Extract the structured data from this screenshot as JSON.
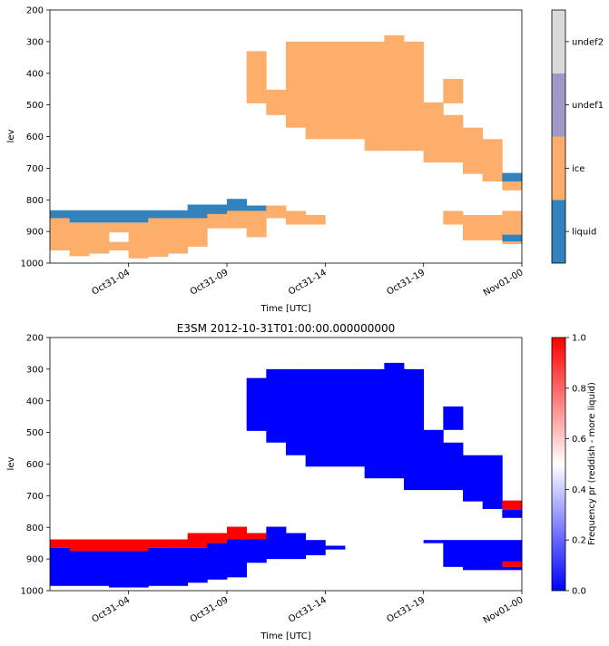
{
  "chart_data": [
    {
      "type": "heatmap",
      "title": "",
      "xlabel": "Time [UTC]",
      "ylabel": "lev",
      "xlim_hours": [
        0,
        24
      ],
      "ylim": [
        1000,
        200
      ],
      "x_tick_labels": [
        "Oct31-04",
        "Oct31-09",
        "Oct31-14",
        "Oct31-19",
        "Nov01-00"
      ],
      "x_tick_hours": [
        4,
        9,
        14,
        19,
        24
      ],
      "y_ticks": [
        200,
        300,
        400,
        500,
        600,
        700,
        800,
        900,
        1000
      ],
      "grid": false,
      "colorbar": {
        "kind": "categorical",
        "categories": [
          "liquid",
          "ice",
          "undef1",
          "undef2"
        ],
        "colors": [
          "#3182bd",
          "#fdae6b",
          "#9e9ac8",
          "#d9d9d9"
        ]
      },
      "cells": [
        {
          "x0": 0,
          "x1": 1,
          "ranges": [
            [
              833,
              858,
              0
            ],
            [
              858,
              960,
              1
            ]
          ]
        },
        {
          "x0": 1,
          "x1": 2,
          "ranges": [
            [
              833,
              872,
              0
            ],
            [
              872,
              978,
              1
            ]
          ]
        },
        {
          "x0": 2,
          "x1": 3,
          "ranges": [
            [
              833,
              872,
              0
            ],
            [
              872,
              970,
              1
            ]
          ]
        },
        {
          "x0": 3,
          "x1": 4,
          "ranges": [
            [
              833,
              872,
              0
            ],
            [
              872,
              903,
              1
            ],
            [
              933,
              960,
              1
            ]
          ]
        },
        {
          "x0": 4,
          "x1": 5,
          "ranges": [
            [
              833,
              872,
              0
            ],
            [
              872,
              985,
              1
            ]
          ]
        },
        {
          "x0": 5,
          "x1": 6,
          "ranges": [
            [
              833,
              858,
              0
            ],
            [
              858,
              980,
              1
            ]
          ]
        },
        {
          "x0": 6,
          "x1": 7,
          "ranges": [
            [
              833,
              858,
              0
            ],
            [
              858,
              970,
              1
            ]
          ]
        },
        {
          "x0": 7,
          "x1": 8,
          "ranges": [
            [
              815,
              858,
              0
            ],
            [
              858,
              948,
              1
            ]
          ]
        },
        {
          "x0": 8,
          "x1": 9,
          "ranges": [
            [
              815,
              845,
              0
            ],
            [
              845,
              890,
              1
            ]
          ]
        },
        {
          "x0": 9,
          "x1": 10,
          "ranges": [
            [
              797,
              835,
              0
            ],
            [
              835,
              890,
              1
            ]
          ]
        },
        {
          "x0": 10,
          "x1": 11,
          "ranges": [
            [
              330,
              495,
              1
            ],
            [
              818,
              835,
              0
            ],
            [
              835,
              918,
              1
            ]
          ]
        },
        {
          "x0": 11,
          "x1": 12,
          "ranges": [
            [
              452,
              532,
              1
            ],
            [
              818,
              858,
              1
            ]
          ]
        },
        {
          "x0": 12,
          "x1": 13,
          "ranges": [
            [
              300,
              572,
              1
            ],
            [
              835,
              878,
              1
            ]
          ]
        },
        {
          "x0": 13,
          "x1": 14,
          "ranges": [
            [
              300,
              608,
              1
            ],
            [
              848,
              878,
              1
            ]
          ]
        },
        {
          "x0": 14,
          "x1": 15,
          "ranges": [
            [
              300,
              608,
              1
            ]
          ]
        },
        {
          "x0": 15,
          "x1": 16,
          "ranges": [
            [
              300,
              608,
              1
            ]
          ]
        },
        {
          "x0": 16,
          "x1": 17,
          "ranges": [
            [
              300,
              645,
              1
            ]
          ]
        },
        {
          "x0": 17,
          "x1": 18,
          "ranges": [
            [
              280,
              645,
              1
            ]
          ]
        },
        {
          "x0": 18,
          "x1": 19,
          "ranges": [
            [
              300,
              645,
              1
            ]
          ]
        },
        {
          "x0": 19,
          "x1": 20,
          "ranges": [
            [
              492,
              682,
              1
            ]
          ]
        },
        {
          "x0": 20,
          "x1": 21,
          "ranges": [
            [
              418,
              495,
              1
            ],
            [
              532,
              682,
              1
            ],
            [
              835,
              878,
              1
            ]
          ]
        },
        {
          "x0": 21,
          "x1": 22,
          "ranges": [
            [
              572,
              718,
              1
            ],
            [
              848,
              928,
              1
            ]
          ]
        },
        {
          "x0": 22,
          "x1": 23,
          "ranges": [
            [
              608,
              742,
              1
            ],
            [
              848,
              928,
              1
            ]
          ]
        },
        {
          "x0": 23,
          "x1": 24,
          "ranges": [
            [
              715,
              742,
              0
            ],
            [
              742,
              770,
              1
            ],
            [
              835,
              910,
              1
            ],
            [
              910,
              932,
              0
            ],
            [
              932,
              940,
              1
            ]
          ]
        }
      ]
    },
    {
      "type": "heatmap",
      "title": "E3SM 2012-10-31T01:00:00.000000000",
      "xlabel": "Time [UTC]",
      "ylabel": "lev",
      "xlim_hours": [
        0,
        24
      ],
      "ylim": [
        1000,
        200
      ],
      "x_tick_labels": [
        "Oct31-04",
        "Oct31-09",
        "Oct31-14",
        "Oct31-19",
        "Nov01-00"
      ],
      "x_tick_hours": [
        4,
        9,
        14,
        19,
        24
      ],
      "y_ticks": [
        200,
        300,
        400,
        500,
        600,
        700,
        800,
        900,
        1000
      ],
      "grid": false,
      "colorbar": {
        "kind": "continuous",
        "label": "Frequency pr (reddish - more liquid)",
        "range": [
          0,
          1
        ],
        "ticks": [
          "0.0",
          "0.2",
          "0.4",
          "0.6",
          "0.8",
          "1.0"
        ],
        "colors": [
          "#0000ff",
          "#ffffff",
          "#ff0000"
        ]
      },
      "cells": [
        {
          "x0": 0,
          "x1": 1,
          "ranges": [
            [
              838,
              865,
              1
            ],
            [
              865,
              985,
              0
            ]
          ]
        },
        {
          "x0": 1,
          "x1": 2,
          "ranges": [
            [
              838,
              875,
              1
            ],
            [
              875,
              985,
              0
            ]
          ]
        },
        {
          "x0": 2,
          "x1": 3,
          "ranges": [
            [
              838,
              875,
              1
            ],
            [
              875,
              985,
              0
            ]
          ]
        },
        {
          "x0": 3,
          "x1": 4,
          "ranges": [
            [
              838,
              875,
              1
            ],
            [
              875,
              990,
              0
            ]
          ]
        },
        {
          "x0": 4,
          "x1": 5,
          "ranges": [
            [
              838,
              875,
              1
            ],
            [
              875,
              990,
              0
            ]
          ]
        },
        {
          "x0": 5,
          "x1": 6,
          "ranges": [
            [
              838,
              865,
              1
            ],
            [
              865,
              985,
              0
            ]
          ]
        },
        {
          "x0": 6,
          "x1": 7,
          "ranges": [
            [
              838,
              865,
              1
            ],
            [
              865,
              985,
              0
            ]
          ]
        },
        {
          "x0": 7,
          "x1": 8,
          "ranges": [
            [
              818,
              865,
              1
            ],
            [
              865,
              975,
              0
            ]
          ]
        },
        {
          "x0": 8,
          "x1": 9,
          "ranges": [
            [
              818,
              850,
              1
            ],
            [
              850,
              965,
              0
            ]
          ]
        },
        {
          "x0": 9,
          "x1": 10,
          "ranges": [
            [
              798,
              838,
              1
            ],
            [
              838,
              958,
              0
            ]
          ]
        },
        {
          "x0": 10,
          "x1": 11,
          "ranges": [
            [
              328,
              495,
              0
            ],
            [
              818,
              838,
              1
            ],
            [
              838,
              912,
              0
            ]
          ]
        },
        {
          "x0": 11,
          "x1": 12,
          "ranges": [
            [
              300,
              532,
              0
            ],
            [
              798,
              900,
              0
            ]
          ]
        },
        {
          "x0": 12,
          "x1": 13,
          "ranges": [
            [
              300,
              572,
              0
            ],
            [
              818,
              900,
              0
            ]
          ]
        },
        {
          "x0": 13,
          "x1": 14,
          "ranges": [
            [
              300,
              608,
              0
            ],
            [
              840,
              888,
              0
            ]
          ]
        },
        {
          "x0": 14,
          "x1": 15,
          "ranges": [
            [
              300,
              608,
              0
            ],
            [
              858,
              870,
              0
            ]
          ]
        },
        {
          "x0": 15,
          "x1": 16,
          "ranges": [
            [
              300,
              608,
              0
            ]
          ]
        },
        {
          "x0": 16,
          "x1": 17,
          "ranges": [
            [
              300,
              645,
              0
            ]
          ]
        },
        {
          "x0": 17,
          "x1": 18,
          "ranges": [
            [
              280,
              645,
              0
            ]
          ]
        },
        {
          "x0": 18,
          "x1": 19,
          "ranges": [
            [
              300,
              682,
              0
            ]
          ]
        },
        {
          "x0": 19,
          "x1": 20,
          "ranges": [
            [
              492,
              682,
              0
            ],
            [
              840,
              850,
              0
            ]
          ]
        },
        {
          "x0": 20,
          "x1": 21,
          "ranges": [
            [
              418,
              492,
              0
            ],
            [
              532,
              682,
              0
            ],
            [
              840,
              925,
              0
            ]
          ]
        },
        {
          "x0": 21,
          "x1": 22,
          "ranges": [
            [
              572,
              718,
              0
            ],
            [
              840,
              935,
              0
            ]
          ]
        },
        {
          "x0": 22,
          "x1": 23,
          "ranges": [
            [
              572,
              742,
              0
            ],
            [
              840,
              935,
              0
            ]
          ]
        },
        {
          "x0": 23,
          "x1": 24,
          "ranges": [
            [
              715,
              745,
              1
            ],
            [
              745,
              770,
              0
            ],
            [
              840,
              908,
              0
            ],
            [
              908,
              925,
              1
            ],
            [
              925,
              935,
              0
            ]
          ]
        }
      ]
    }
  ]
}
